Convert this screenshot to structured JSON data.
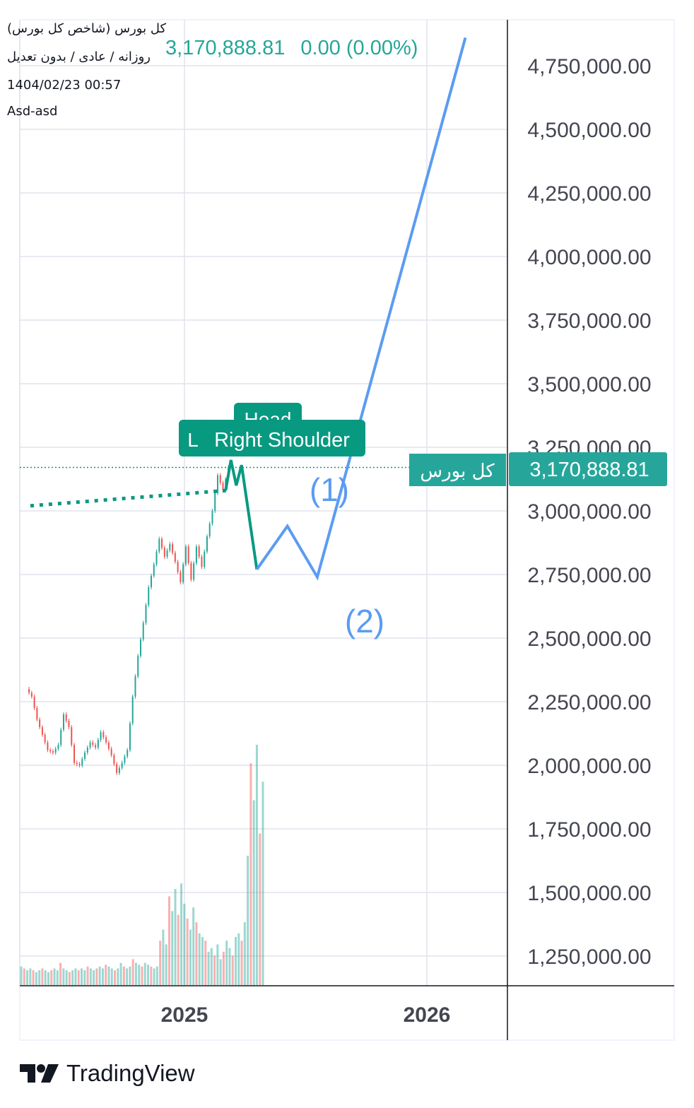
{
  "header": {
    "symbol_title": "کل بورس (شاخص کل بورس)",
    "settings": "روزانه / عادی / بدون تعدیل",
    "datetime": "1404/02/23 00:57",
    "author": "Asd-asd",
    "last_price": "3,170,888.81",
    "change": "0.00 (0.00%)"
  },
  "chart_data": {
    "type": "line",
    "title": "کل بورس (شاخص کل بورس)",
    "xlabel": "",
    "ylabel": "",
    "x_ticks": [
      "2025",
      "2026"
    ],
    "ylim": [
      1100000,
      4850000
    ],
    "y_ticks": [
      1250000,
      1500000,
      1750000,
      2000000,
      2250000,
      2500000,
      2750000,
      3000000,
      3250000,
      3500000,
      3750000,
      4000000,
      4250000,
      4500000,
      4750000
    ],
    "y_tick_labels": [
      "1,250,000.00",
      "1,500,000.00",
      "1,750,000.00",
      "2,000,000.00",
      "2,250,000.00",
      "2,500,000.00",
      "2,750,000.00",
      "3,000,000.00",
      "3,250,000.00",
      "3,500,000.00",
      "3,750,000.00",
      "4,000,000.00",
      "4,250,000.00",
      "4,500,000.00",
      "4,750,000.00"
    ],
    "last_value": 3170888.81,
    "last_value_label": "3,170,888.81",
    "series_label": "کل بورس",
    "price_path": [
      [
        "2024-05-10",
        2300000
      ],
      [
        "2024-05-18",
        2270000
      ],
      [
        "2024-05-26",
        2180000
      ],
      [
        "2024-06-03",
        2120000
      ],
      [
        "2024-06-11",
        2060000
      ],
      [
        "2024-06-19",
        2050000
      ],
      [
        "2024-06-27",
        2080000
      ],
      [
        "2024-07-05",
        2200000
      ],
      [
        "2024-07-13",
        2150000
      ],
      [
        "2024-07-21",
        2010000
      ],
      [
        "2024-07-29",
        2000000
      ],
      [
        "2024-08-06",
        2050000
      ],
      [
        "2024-08-14",
        2090000
      ],
      [
        "2024-08-22",
        2070000
      ],
      [
        "2024-08-30",
        2130000
      ],
      [
        "2024-09-07",
        2090000
      ],
      [
        "2024-09-15",
        2040000
      ],
      [
        "2024-09-23",
        1970000
      ],
      [
        "2024-10-01",
        2010000
      ],
      [
        "2024-10-09",
        2060000
      ],
      [
        "2024-10-17",
        2270000
      ],
      [
        "2024-10-25",
        2430000
      ],
      [
        "2024-11-02",
        2560000
      ],
      [
        "2024-11-10",
        2700000
      ],
      [
        "2024-11-18",
        2790000
      ],
      [
        "2024-11-26",
        2890000
      ],
      [
        "2024-12-04",
        2820000
      ],
      [
        "2024-12-12",
        2870000
      ],
      [
        "2024-12-20",
        2800000
      ],
      [
        "2024-12-28",
        2720000
      ],
      [
        "2025-01-05",
        2860000
      ],
      [
        "2025-01-13",
        2730000
      ],
      [
        "2025-01-21",
        2860000
      ],
      [
        "2025-01-29",
        2780000
      ],
      [
        "2025-02-06",
        2900000
      ],
      [
        "2025-02-14",
        3000000
      ],
      [
        "2025-02-22",
        3140000
      ],
      [
        "2025-03-02",
        3080000
      ],
      [
        "2025-03-10",
        3170000
      ]
    ],
    "volume": [
      10,
      9,
      8,
      9,
      8,
      7,
      8,
      9,
      8,
      7,
      8,
      9,
      8,
      12,
      9,
      8,
      7,
      8,
      9,
      8,
      9,
      8,
      10,
      9,
      8,
      9,
      10,
      9,
      11,
      10,
      9,
      8,
      9,
      12,
      10,
      9,
      10,
      14,
      12,
      11,
      10,
      12,
      11,
      10,
      9,
      10,
      24,
      30,
      22,
      48,
      40,
      52,
      38,
      55,
      44,
      36,
      30,
      42,
      34,
      28,
      26,
      24,
      18,
      20,
      16,
      22,
      14,
      18,
      24,
      20,
      16,
      26,
      28,
      24,
      34,
      70,
      120,
      100,
      130,
      82,
      110
    ],
    "annotations": {
      "pattern_left_label": "L",
      "pattern_head_label": "Head",
      "pattern_right_label": "Right Shoulder",
      "wave_1_label": "(1)",
      "wave_2_label": "(2)",
      "neckline": [
        [
          "2024-05-14",
          3020000
        ],
        [
          "2025-03-04",
          3080000
        ]
      ],
      "green_projection": [
        [
          "2025-03-04",
          3080000
        ],
        [
          "2025-03-12",
          3200000
        ],
        [
          "2025-03-20",
          3100000
        ],
        [
          "2025-03-28",
          3180000
        ],
        [
          "2025-04-20",
          2770000
        ]
      ],
      "blue_projection": [
        [
          "2025-04-20",
          2770000
        ],
        [
          "2025-06-05",
          2940000
        ],
        [
          "2025-07-20",
          2740000
        ],
        [
          "2026-02-28",
          4860000
        ]
      ]
    }
  },
  "colors": {
    "up": "#26a69a",
    "down": "#ef5350",
    "projection_blue": "#5b9cf2",
    "projection_green": "#089981",
    "label_bg": "#089981",
    "grid": "#e0e3eb"
  },
  "branding": {
    "logo_text": "TradingView"
  }
}
